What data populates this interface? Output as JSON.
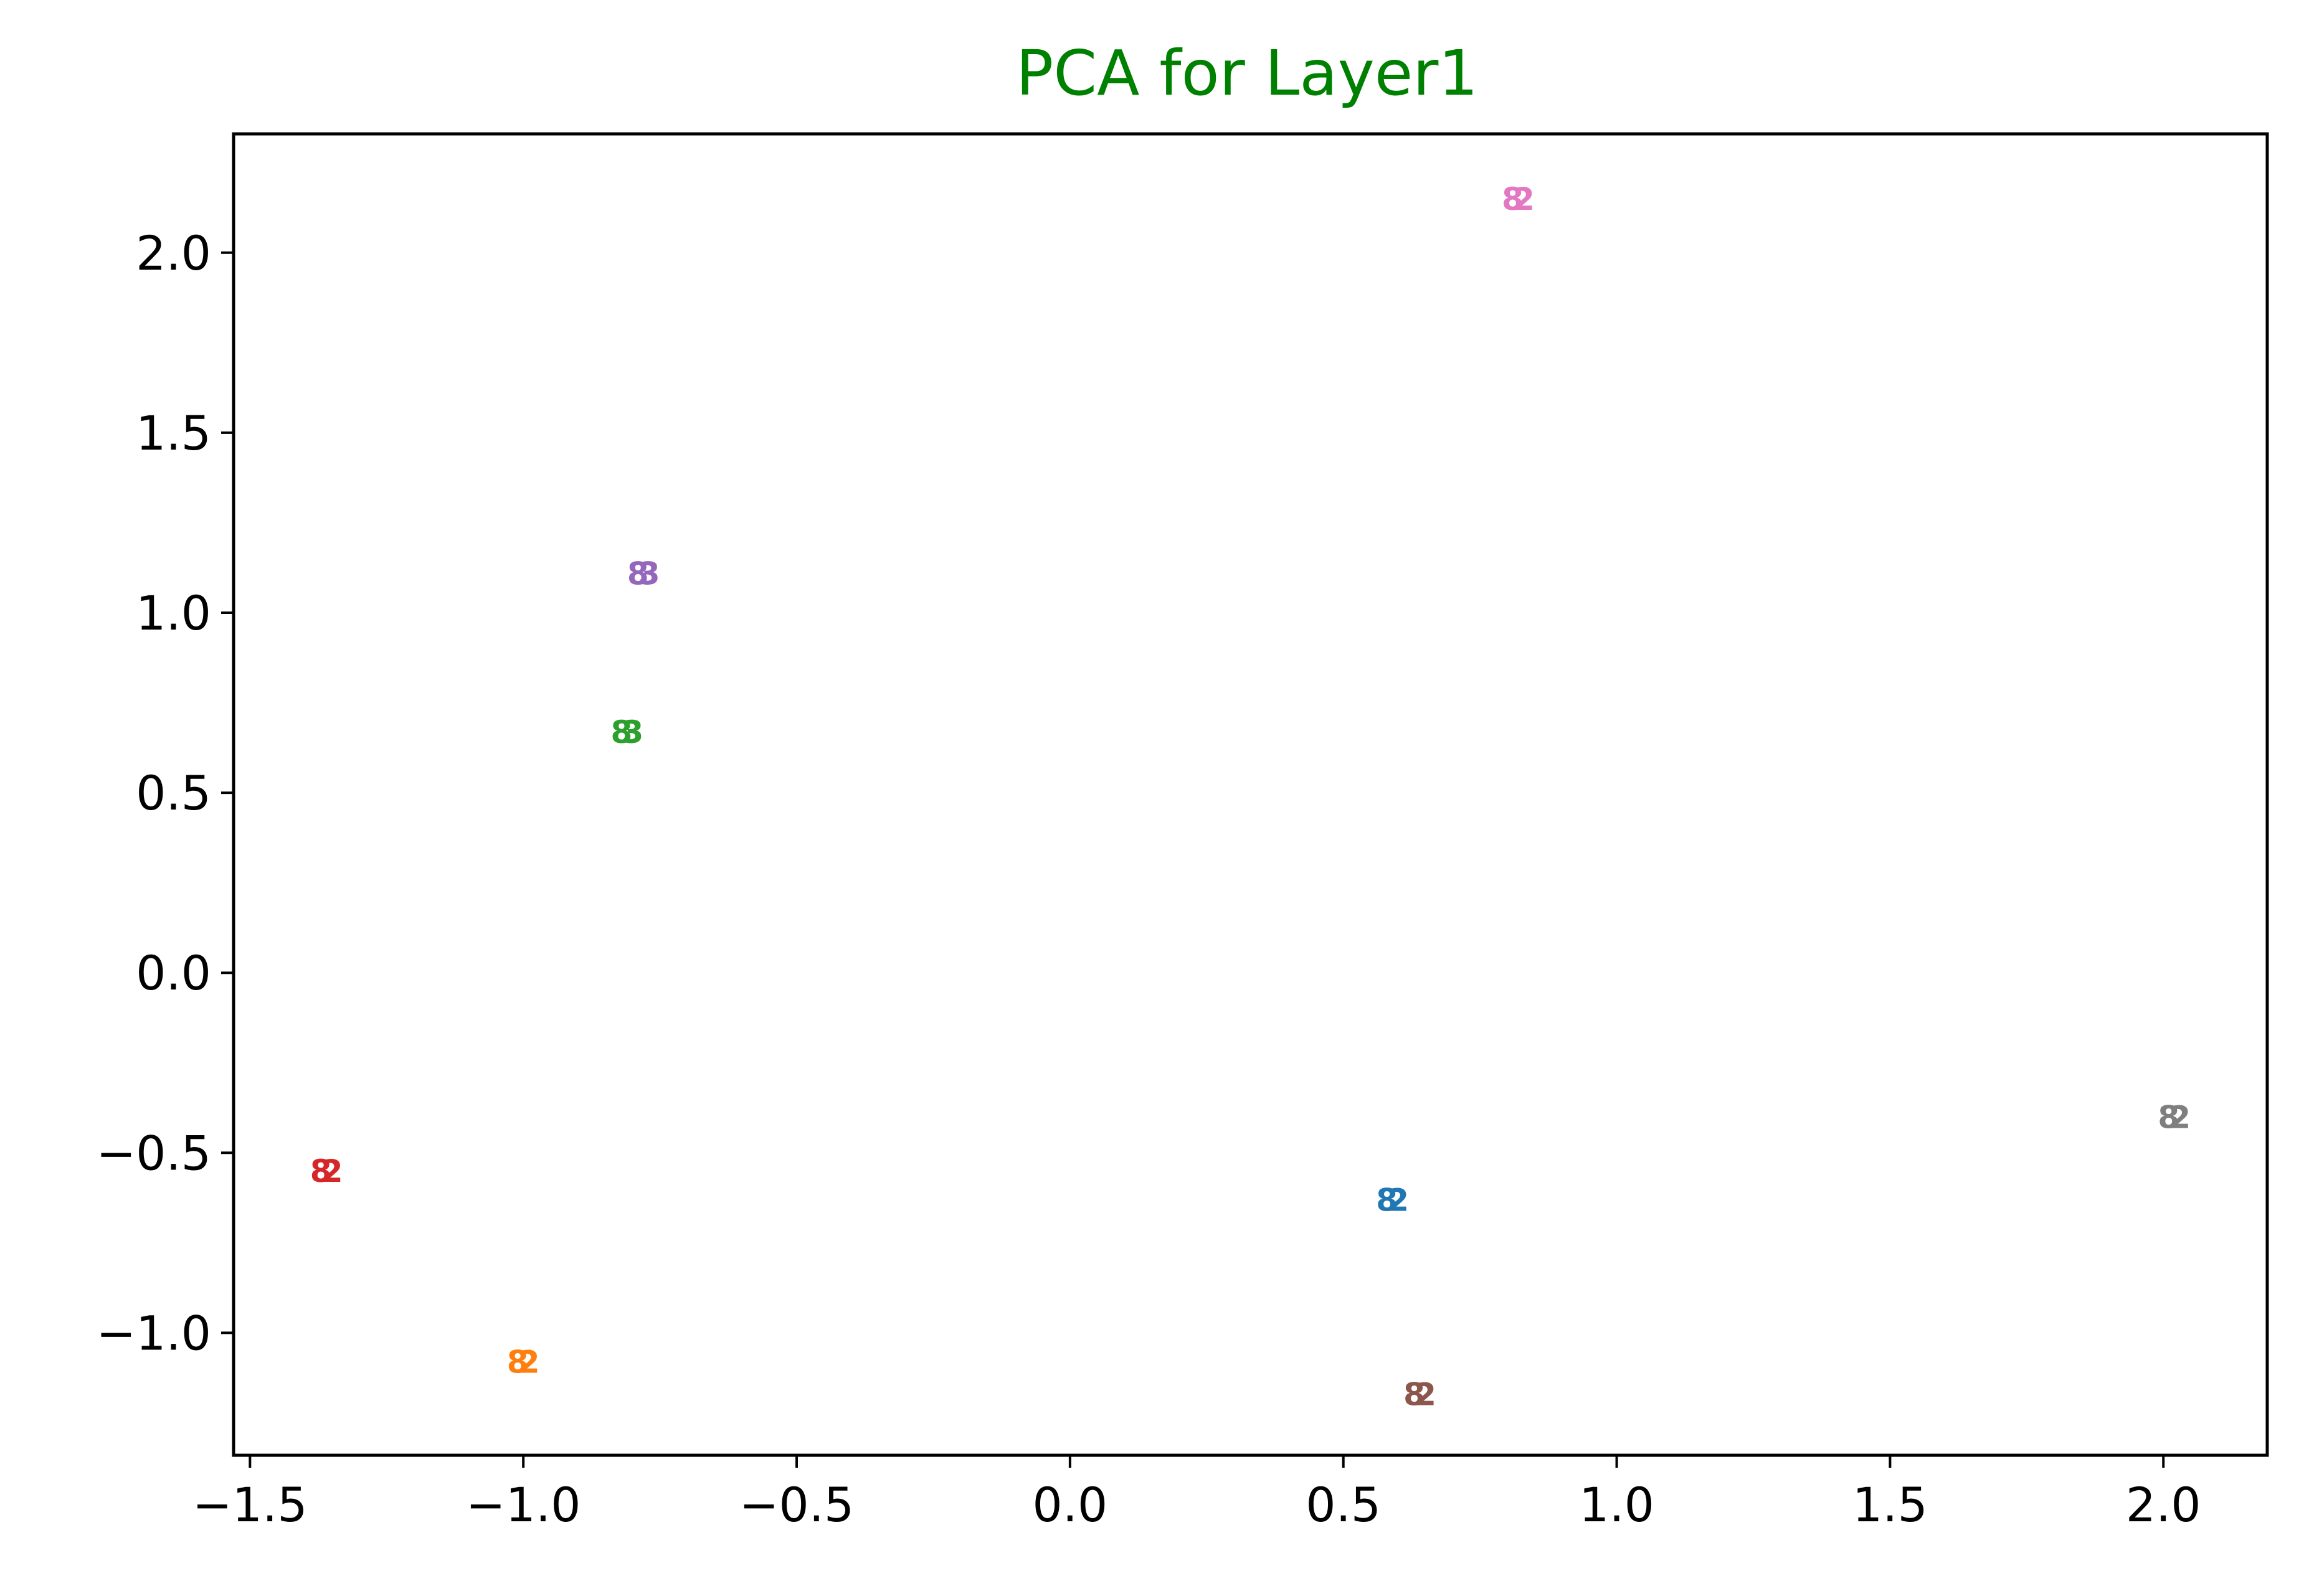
{
  "chart_data": {
    "type": "scatter",
    "title": "PCA for Layer1",
    "title_color": "#008000",
    "xlabel": "",
    "ylabel": "",
    "xlim": [
      -1.53,
      2.19
    ],
    "ylim": [
      -1.34,
      2.33
    ],
    "grid": false,
    "xticks": [
      -1.5,
      -1.0,
      -0.5,
      0.0,
      0.5,
      1.0,
      1.5,
      2.0
    ],
    "xtick_labels": [
      "−1.5",
      "−1.0",
      "−0.5",
      "0.0",
      "0.5",
      "1.0",
      "1.5",
      "2.0"
    ],
    "yticks": [
      -1.0,
      -0.5,
      0.0,
      0.5,
      1.0,
      1.5,
      2.0
    ],
    "ytick_labels": [
      "−1.0",
      "−0.5",
      "0.0",
      "0.5",
      "1.0",
      "1.5",
      "2.0"
    ],
    "points": [
      {
        "x": 0.59,
        "y": -0.63,
        "labels": [
          "8",
          "2"
        ],
        "color": "#1f77b4"
      },
      {
        "x": -1.0,
        "y": -1.08,
        "labels": [
          "8",
          "2"
        ],
        "color": "#ff7f0e"
      },
      {
        "x": -0.81,
        "y": 0.67,
        "labels": [
          "8",
          "3"
        ],
        "color": "#2ca02c"
      },
      {
        "x": -1.36,
        "y": -0.55,
        "labels": [
          "8",
          "2"
        ],
        "color": "#d62728"
      },
      {
        "x": -0.78,
        "y": 1.11,
        "labels": [
          "8",
          "3"
        ],
        "color": "#9467bd"
      },
      {
        "x": 0.64,
        "y": -1.17,
        "labels": [
          "8",
          "2"
        ],
        "color": "#8c564b"
      },
      {
        "x": 0.82,
        "y": 2.15,
        "labels": [
          "8",
          "2"
        ],
        "color": "#e377c2"
      },
      {
        "x": 2.02,
        "y": -0.4,
        "labels": [
          "8",
          "2"
        ],
        "color": "#7f7f7f"
      }
    ]
  }
}
